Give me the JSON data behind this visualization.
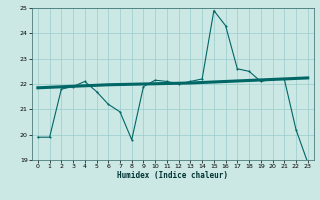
{
  "xlabel": "Humidex (Indice chaleur)",
  "ylabel": "",
  "bg_color": "#cce8e4",
  "grid_color": "#99cccc",
  "line_color": "#006666",
  "xlim": [
    -0.5,
    23.5
  ],
  "ylim": [
    19,
    25
  ],
  "yticks": [
    19,
    20,
    21,
    22,
    23,
    24,
    25
  ],
  "xticks": [
    0,
    1,
    2,
    3,
    4,
    5,
    6,
    7,
    8,
    9,
    10,
    11,
    12,
    13,
    14,
    15,
    16,
    17,
    18,
    19,
    20,
    21,
    22,
    23
  ],
  "series1_x": [
    0,
    1,
    2,
    3,
    4,
    5,
    6,
    7,
    8,
    9,
    10,
    11,
    12,
    13,
    14,
    15,
    16,
    17,
    18,
    19,
    20,
    21,
    22,
    23
  ],
  "series1_y": [
    19.9,
    19.9,
    21.8,
    21.9,
    22.1,
    21.7,
    21.2,
    20.9,
    19.8,
    21.9,
    22.15,
    22.1,
    22.0,
    22.1,
    22.2,
    24.9,
    24.3,
    22.6,
    22.5,
    22.1,
    22.2,
    22.2,
    20.2,
    18.9
  ],
  "series2_x": [
    0,
    1,
    2,
    3,
    4,
    5,
    6,
    7,
    8,
    9,
    10,
    11,
    12,
    13,
    14,
    15,
    16,
    17,
    18,
    19,
    20,
    21,
    22,
    23
  ],
  "series2_y": [
    21.85,
    21.87,
    21.89,
    21.91,
    21.93,
    21.95,
    21.97,
    21.98,
    21.99,
    22.0,
    22.01,
    22.02,
    22.03,
    22.04,
    22.06,
    22.08,
    22.1,
    22.12,
    22.14,
    22.16,
    22.18,
    22.2,
    22.22,
    22.24
  ]
}
